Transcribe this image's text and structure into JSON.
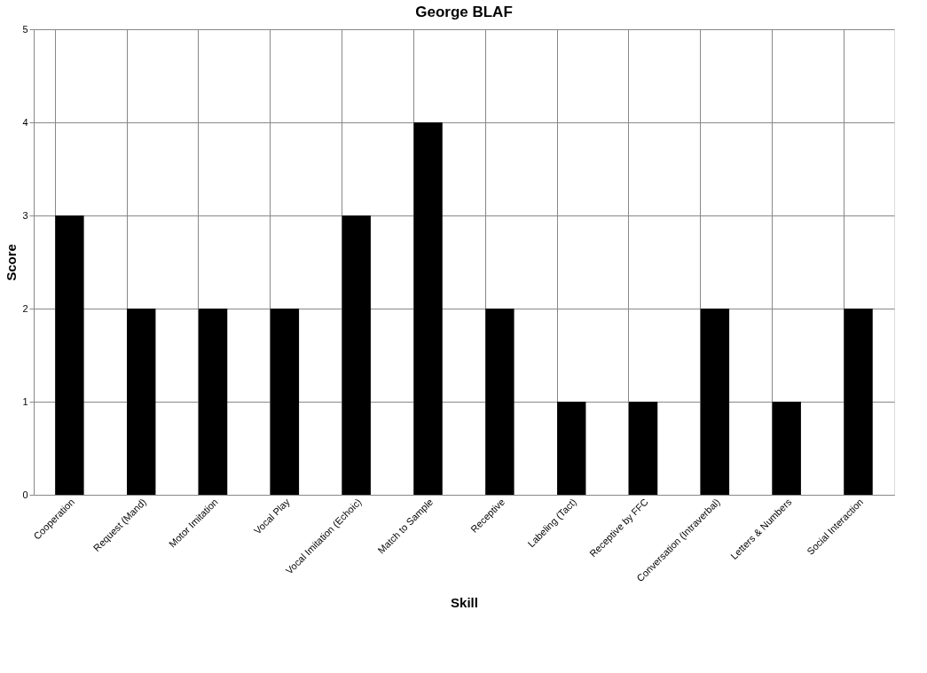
{
  "chart_data": {
    "type": "bar",
    "title": "George BLAF",
    "xlabel": "Skill",
    "ylabel": "Score",
    "categories": [
      "Cooperation",
      "Request (Mand)",
      "Motor Imitation",
      "Vocal Play",
      "Vocal Imitation (Echoic)",
      "Match to Sample",
      "Receptive",
      "Labeling (Tact)",
      "Receptive by FFC",
      "Conversation (Intraverbal)",
      "Letters & Numbers",
      "Social Interaction"
    ],
    "values": [
      3,
      2,
      2,
      2,
      3,
      4,
      2,
      1,
      1,
      2,
      1,
      2
    ],
    "color": "#000000",
    "ylim": [
      0,
      5
    ],
    "yticks": [
      0,
      1,
      2,
      3,
      4,
      5
    ],
    "grid": true
  }
}
